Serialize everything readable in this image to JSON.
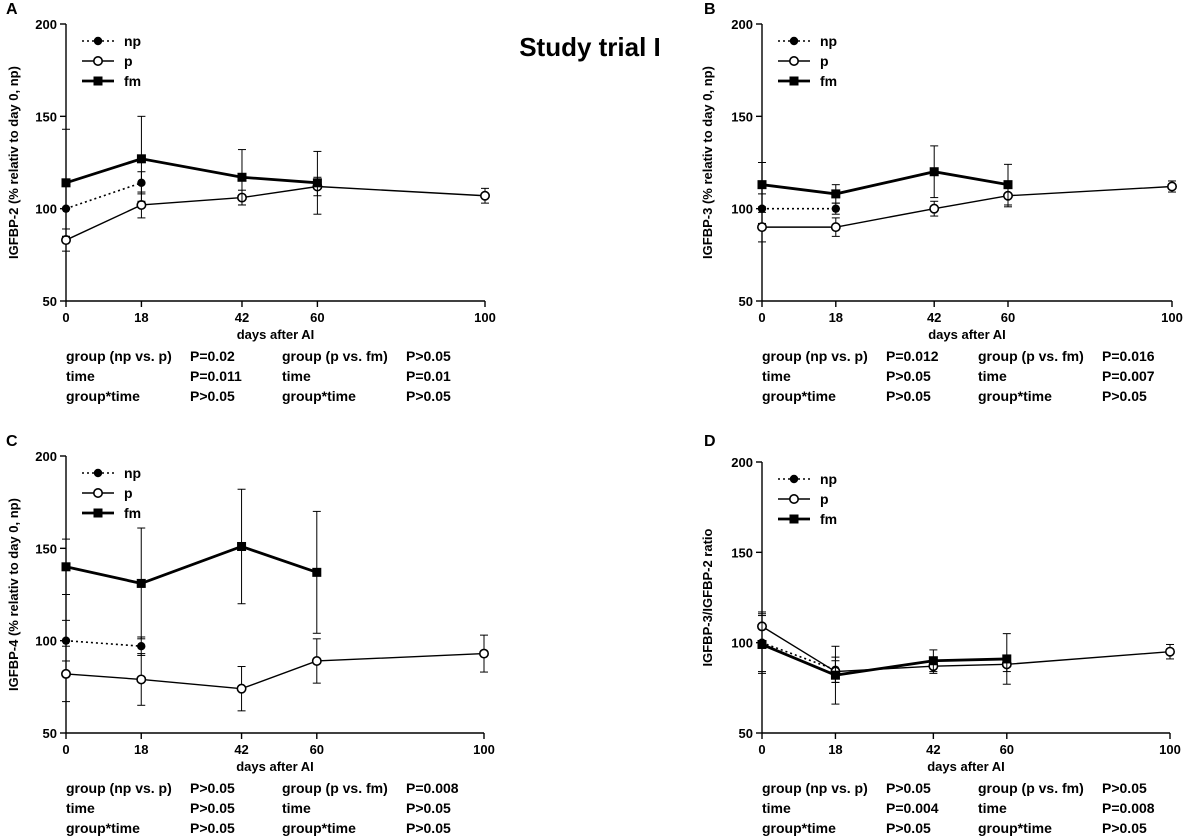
{
  "figure_title": "Study trial I",
  "stat_labels": {
    "group_np_p": "group (np vs. p)",
    "group_p_fm": "group (p vs. fm)",
    "time": "time",
    "interaction": "group*time"
  },
  "colors": {
    "line": "#000000",
    "background": "#ffffff"
  },
  "chart_data": [
    {
      "panel": "A",
      "type": "line",
      "xlabel": "days after AI",
      "ylabel": "IGFBP-2 (% relativ to day 0, np)",
      "xlim": [
        0,
        100
      ],
      "ylim": [
        50,
        200
      ],
      "xticks": [
        0,
        18,
        42,
        60,
        100
      ],
      "yticks": [
        50,
        100,
        150,
        200
      ],
      "legend_position": "top-left",
      "series": [
        {
          "name": "np",
          "marker": "filled-circle",
          "line": "dotted",
          "x": [
            0,
            18
          ],
          "y": [
            100,
            114
          ],
          "err": [
            15,
            6
          ]
        },
        {
          "name": "p",
          "marker": "open-circle",
          "line": "solid-thin",
          "x": [
            0,
            18,
            42,
            60,
            100
          ],
          "y": [
            83,
            102,
            106,
            112,
            107
          ],
          "err": [
            6,
            7,
            4,
            5,
            4
          ]
        },
        {
          "name": "fm",
          "marker": "filled-square",
          "line": "solid-thick",
          "x": [
            0,
            18,
            42,
            60
          ],
          "y": [
            114,
            127,
            117,
            114
          ],
          "err": [
            29,
            23,
            15,
            17
          ]
        }
      ],
      "stats": [
        {
          "l1": "group (np vs. p)",
          "v1": "P=0.02",
          "l2": "group (p vs. fm)",
          "v2": "P>0.05"
        },
        {
          "l1": "time",
          "v1": "P=0.011",
          "l2": "time",
          "v2": "P=0.01"
        },
        {
          "l1": "group*time",
          "v1": "P>0.05",
          "l2": "group*time",
          "v2": "P>0.05"
        }
      ]
    },
    {
      "panel": "B",
      "type": "line",
      "xlabel": "days after AI",
      "ylabel": "IGFBP-3 (% relativ to day 0, np)",
      "xlim": [
        0,
        100
      ],
      "ylim": [
        50,
        200
      ],
      "xticks": [
        0,
        18,
        42,
        60,
        100
      ],
      "yticks": [
        50,
        100,
        150,
        200
      ],
      "legend_position": "top-left",
      "series": [
        {
          "name": "np",
          "marker": "filled-circle",
          "line": "dotted",
          "x": [
            0,
            18
          ],
          "y": [
            100,
            100
          ],
          "err": [
            8,
            3
          ]
        },
        {
          "name": "p",
          "marker": "open-circle",
          "line": "solid-thin",
          "x": [
            0,
            18,
            42,
            60,
            100
          ],
          "y": [
            90,
            90,
            100,
            107,
            112
          ],
          "err": [
            8,
            5,
            4,
            6,
            3
          ]
        },
        {
          "name": "fm",
          "marker": "filled-square",
          "line": "solid-thick",
          "x": [
            0,
            18,
            42,
            60
          ],
          "y": [
            113,
            108,
            120,
            113
          ],
          "err": [
            12,
            5,
            14,
            11
          ]
        }
      ],
      "stats": [
        {
          "l1": "group (np vs. p)",
          "v1": "P=0.012",
          "l2": "group (p vs. fm)",
          "v2": "P=0.016"
        },
        {
          "l1": "time",
          "v1": "P>0.05",
          "l2": "time",
          "v2": "P=0.007"
        },
        {
          "l1": "group*time",
          "v1": "P>0.05",
          "l2": "group*time",
          "v2": "P>0.05"
        }
      ]
    },
    {
      "panel": "C",
      "type": "line",
      "xlabel": "days after AI",
      "ylabel": "IGFBP-4 (% relativ to day 0, np)",
      "xlim": [
        0,
        100
      ],
      "ylim": [
        50,
        200
      ],
      "xticks": [
        0,
        18,
        42,
        60,
        100
      ],
      "yticks": [
        50,
        100,
        150,
        200
      ],
      "legend_position": "top-left",
      "series": [
        {
          "name": "np",
          "marker": "filled-circle",
          "line": "dotted",
          "x": [
            0,
            18
          ],
          "y": [
            100,
            97
          ],
          "err": [
            11,
            5
          ]
        },
        {
          "name": "p",
          "marker": "open-circle",
          "line": "solid-thin",
          "x": [
            0,
            18,
            42,
            60,
            100
          ],
          "y": [
            82,
            79,
            74,
            89,
            93
          ],
          "err": [
            15,
            14,
            12,
            12,
            10
          ]
        },
        {
          "name": "fm",
          "marker": "filled-square",
          "line": "solid-thick",
          "x": [
            0,
            18,
            42,
            60
          ],
          "y": [
            140,
            131,
            151,
            137
          ],
          "err": [
            15,
            30,
            31,
            33
          ]
        }
      ],
      "stats": [
        {
          "l1": "group (np vs. p)",
          "v1": "P>0.05",
          "l2": "group (p vs. fm)",
          "v2": "P=0.008"
        },
        {
          "l1": "time",
          "v1": "P>0.05",
          "l2": "time",
          "v2": "P>0.05"
        },
        {
          "l1": "group*time",
          "v1": "P>0.05",
          "l2": "group*time",
          "v2": "P>0.05"
        }
      ]
    },
    {
      "panel": "D",
      "type": "line",
      "xlabel": "days after AI",
      "ylabel": "IGFBP-3/IGFBP-2 ratio",
      "xlim": [
        0,
        100
      ],
      "ylim": [
        50,
        200
      ],
      "xticks": [
        0,
        18,
        42,
        60,
        100
      ],
      "yticks": [
        50,
        100,
        150,
        200
      ],
      "legend_position": "top-left",
      "series": [
        {
          "name": "np",
          "marker": "filled-circle",
          "line": "dotted",
          "x": [
            0,
            18
          ],
          "y": [
            100,
            85
          ],
          "err": [
            16,
            7
          ]
        },
        {
          "name": "p",
          "marker": "open-circle",
          "line": "solid-thin",
          "x": [
            0,
            18,
            42,
            60,
            100
          ],
          "y": [
            109,
            84,
            87,
            88,
            95
          ],
          "err": [
            8,
            6,
            4,
            4,
            4
          ]
        },
        {
          "name": "fm",
          "marker": "filled-square",
          "line": "solid-thick",
          "x": [
            0,
            18,
            42,
            60
          ],
          "y": [
            99,
            82,
            90,
            91
          ],
          "err": [
            16,
            16,
            6,
            14
          ]
        }
      ],
      "stats": [
        {
          "l1": "group (np vs. p)",
          "v1": "P>0.05",
          "l2": "group (p vs. fm)",
          "v2": "P>0.05"
        },
        {
          "l1": "time",
          "v1": "P=0.004",
          "l2": "time",
          "v2": "P=0.008"
        },
        {
          "l1": "group*time",
          "v1": "P>0.05",
          "l2": "group*time",
          "v2": "P>0.05"
        }
      ]
    }
  ]
}
